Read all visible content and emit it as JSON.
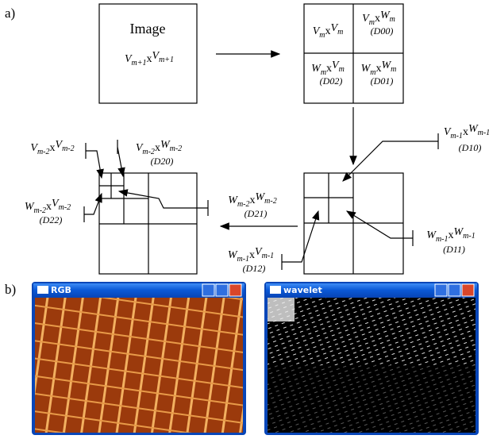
{
  "panels": {
    "a": "a)",
    "b": "b)"
  },
  "image_box": {
    "title": "Image",
    "size": [
      "V",
      "m+1",
      "x",
      "V",
      "m+1"
    ]
  },
  "labels": [
    {
      "parts": [
        "V",
        "m",
        "x",
        "V",
        "m"
      ]
    },
    {
      "parts": [
        "V",
        "m",
        "x",
        "W",
        "m"
      ],
      "code": "(D00)"
    },
    {
      "parts": [
        "W",
        "m",
        "x",
        "V",
        "m"
      ],
      "code": "(D02)"
    },
    {
      "parts": [
        "W",
        "m",
        "x",
        "W",
        "m"
      ],
      "code": "(D01)"
    },
    {
      "parts": [
        "V",
        "m-1",
        "x",
        "W",
        "m-1"
      ],
      "code": "(D10)"
    },
    {
      "parts": [
        "W",
        "m-1",
        "x",
        "W",
        "m-1"
      ],
      "code": "(D11)"
    },
    {
      "parts": [
        "W",
        "m-1",
        "x",
        "V",
        "m-1"
      ],
      "code": "(D12)"
    },
    {
      "parts": [
        "V",
        "m-2",
        "x",
        "V",
        "m-2"
      ]
    },
    {
      "parts": [
        "V",
        "m-2",
        "x",
        "W",
        "m-2"
      ],
      "code": "(D20)"
    },
    {
      "parts": [
        "W",
        "m-2",
        "x",
        "V",
        "m-2"
      ],
      "code": "(D22)"
    },
    {
      "parts": [
        "W",
        "m-2",
        "x",
        "W",
        "m-2"
      ],
      "code": "(D21)"
    }
  ],
  "windows": [
    {
      "title": "RGB"
    },
    {
      "title": "wavelet"
    }
  ]
}
